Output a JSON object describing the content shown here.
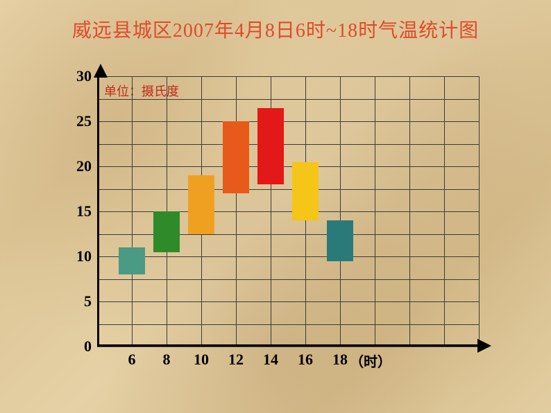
{
  "title": {
    "text": "威远县城区2007年4月8日6时~18时气温统计图",
    "color": "#e04a2a",
    "fontsize": 28
  },
  "unit_label": {
    "text": "单位：摄氏度",
    "color": "#c02a1a",
    "fontsize": 18
  },
  "x_unit": {
    "text": "（时）",
    "color": "#000000",
    "fontsize": 20
  },
  "chart": {
    "type": "bar-range",
    "background_color": "transparent",
    "grid_color": "#3a3a3a",
    "axis_color": "#000000",
    "y": {
      "min": 0,
      "max": 30,
      "ticks": [
        0,
        5,
        10,
        15,
        20,
        25,
        30
      ],
      "label_fontsize": 22,
      "label_color": "#000000"
    },
    "x": {
      "categories": [
        6,
        8,
        10,
        12,
        14,
        16,
        18
      ],
      "label_fontsize": 22,
      "label_color": "#000000"
    },
    "grid": {
      "rows": 12,
      "cols": 11,
      "y_per_row": 2.5
    },
    "bar_width_cells": 0.75,
    "bars": [
      {
        "x": 6,
        "low": 8,
        "high": 11,
        "color": "#4a9a84"
      },
      {
        "x": 8,
        "low": 10.5,
        "high": 15,
        "color": "#2f8a2a"
      },
      {
        "x": 10,
        "low": 12.5,
        "high": 19,
        "color": "#f0a020"
      },
      {
        "x": 12,
        "low": 17,
        "high": 25,
        "color": "#e85a1a"
      },
      {
        "x": 14,
        "low": 18,
        "high": 26.5,
        "color": "#e31818"
      },
      {
        "x": 16,
        "low": 14,
        "high": 20.5,
        "color": "#f5c518"
      },
      {
        "x": 18,
        "low": 9.5,
        "high": 14,
        "color": "#2a7a7a"
      }
    ]
  }
}
